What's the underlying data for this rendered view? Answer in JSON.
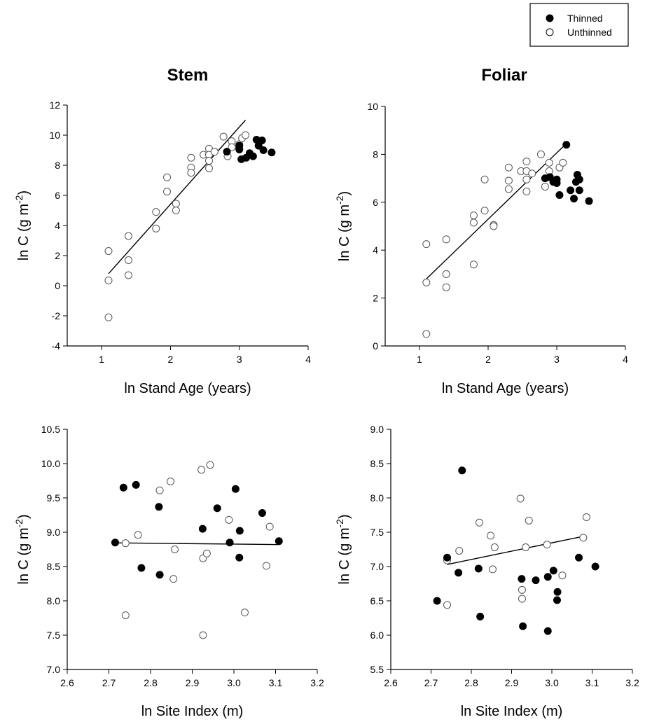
{
  "legend": {
    "entries": [
      {
        "label": "Thinned",
        "marker": "filled-circle",
        "color": "#000000"
      },
      {
        "label": "Unthinned",
        "marker": "open-circle",
        "color": "#ffffff"
      }
    ],
    "placement": "top-right"
  },
  "chart_data": [
    {
      "type": "scatter",
      "panel": "stem-vs-age",
      "title": "Stem",
      "xlabel": "ln Stand Age (years)",
      "ylabel": "ln C (g m-2)",
      "xlim": [
        0.5,
        4
      ],
      "ylim": [
        -4,
        12
      ],
      "xticks": [
        1,
        2,
        3,
        4
      ],
      "yticks": [
        -4,
        -2,
        0,
        2,
        4,
        6,
        8,
        10,
        12
      ],
      "grid": false,
      "series": [
        {
          "name": "Thinned",
          "marker": "filled",
          "points": [
            [
              2.82,
              8.9
            ],
            [
              3.0,
              9.3
            ],
            [
              3.0,
              9.05
            ],
            [
              3.03,
              8.4
            ],
            [
              3.1,
              8.5
            ],
            [
              3.15,
              8.8
            ],
            [
              3.2,
              8.6
            ],
            [
              3.25,
              9.7
            ],
            [
              3.28,
              9.3
            ],
            [
              3.33,
              9.65
            ],
            [
              3.35,
              9.0
            ],
            [
              3.47,
              8.85
            ]
          ]
        },
        {
          "name": "Unthinned",
          "marker": "open",
          "points": [
            [
              1.1,
              2.3
            ],
            [
              1.1,
              0.35
            ],
            [
              1.1,
              -2.1
            ],
            [
              1.39,
              3.3
            ],
            [
              1.39,
              1.7
            ],
            [
              1.39,
              0.7
            ],
            [
              1.79,
              4.9
            ],
            [
              1.79,
              3.8
            ],
            [
              1.95,
              7.2
            ],
            [
              1.95,
              6.25
            ],
            [
              2.08,
              5.45
            ],
            [
              2.08,
              5.0
            ],
            [
              2.3,
              8.5
            ],
            [
              2.3,
              7.85
            ],
            [
              2.3,
              7.5
            ],
            [
              2.48,
              8.7
            ],
            [
              2.56,
              9.1
            ],
            [
              2.56,
              8.7
            ],
            [
              2.56,
              8.3
            ],
            [
              2.56,
              7.8
            ],
            [
              2.64,
              8.9
            ],
            [
              2.77,
              9.9
            ],
            [
              2.83,
              8.6
            ],
            [
              2.89,
              9.6
            ],
            [
              2.89,
              9.2
            ],
            [
              3.0,
              9.4
            ],
            [
              3.0,
              9.1
            ],
            [
              3.04,
              9.8
            ],
            [
              3.09,
              10.0
            ]
          ]
        }
      ],
      "fit_lines": [
        {
          "x": [
            1.1,
            3.09
          ],
          "y": [
            0.8,
            11.0
          ]
        }
      ]
    },
    {
      "type": "scatter",
      "panel": "foliar-vs-age",
      "title": "Foliar",
      "xlabel": "ln Stand Age (years)",
      "ylabel": "ln C (g m-2)",
      "xlim": [
        0.5,
        4
      ],
      "ylim": [
        0,
        10
      ],
      "xticks": [
        1,
        2,
        3,
        4
      ],
      "yticks": [
        0,
        2,
        4,
        6,
        8,
        10
      ],
      "grid": false,
      "series": [
        {
          "name": "Thinned",
          "marker": "filled",
          "points": [
            [
              2.83,
              7.0
            ],
            [
              2.9,
              7.05
            ],
            [
              2.95,
              6.85
            ],
            [
              3.0,
              6.95
            ],
            [
              3.0,
              6.8
            ],
            [
              3.04,
              6.3
            ],
            [
              3.14,
              8.4
            ],
            [
              3.2,
              6.5
            ],
            [
              3.25,
              6.15
            ],
            [
              3.28,
              6.85
            ],
            [
              3.3,
              7.15
            ],
            [
              3.33,
              6.95
            ],
            [
              3.33,
              6.5
            ],
            [
              3.47,
              6.05
            ]
          ]
        },
        {
          "name": "Unthinned",
          "marker": "open",
          "points": [
            [
              1.1,
              4.25
            ],
            [
              1.1,
              2.65
            ],
            [
              1.1,
              0.5
            ],
            [
              1.39,
              4.45
            ],
            [
              1.39,
              3.0
            ],
            [
              1.39,
              2.45
            ],
            [
              1.79,
              5.45
            ],
            [
              1.79,
              5.15
            ],
            [
              1.79,
              3.4
            ],
            [
              1.95,
              6.95
            ],
            [
              1.95,
              5.65
            ],
            [
              2.08,
              5.05
            ],
            [
              2.08,
              5.0
            ],
            [
              2.3,
              7.45
            ],
            [
              2.3,
              6.9
            ],
            [
              2.3,
              6.55
            ],
            [
              2.48,
              7.3
            ],
            [
              2.56,
              7.7
            ],
            [
              2.56,
              7.3
            ],
            [
              2.56,
              6.95
            ],
            [
              2.56,
              6.45
            ],
            [
              2.64,
              7.2
            ],
            [
              2.77,
              8.0
            ],
            [
              2.83,
              6.65
            ],
            [
              2.89,
              7.65
            ],
            [
              2.89,
              7.3
            ],
            [
              3.04,
              7.45
            ],
            [
              3.09,
              7.65
            ]
          ]
        }
      ],
      "fit_lines": [
        {
          "x": [
            1.1,
            3.14
          ],
          "y": [
            2.8,
            8.45
          ]
        }
      ]
    },
    {
      "type": "scatter",
      "panel": "stem-vs-site-index",
      "title": "",
      "xlabel": "ln Site Index (m)",
      "ylabel": "ln C (g m-2)",
      "xlim": [
        2.6,
        3.2
      ],
      "ylim": [
        7.0,
        10.5
      ],
      "xticks": [
        "2.6",
        "2.7",
        "2.8",
        "2.9",
        "3.0",
        "3.1",
        "3.2"
      ],
      "yticks": [
        "7.0",
        "7.5",
        "8.0",
        "8.5",
        "9.0",
        "9.5",
        "10.0",
        "10.5"
      ],
      "grid": false,
      "series": [
        {
          "name": "Thinned",
          "marker": "filled",
          "points": [
            [
              2.715,
              8.85
            ],
            [
              2.735,
              9.65
            ],
            [
              2.765,
              9.69
            ],
            [
              2.778,
              8.48
            ],
            [
              2.82,
              9.37
            ],
            [
              2.822,
              8.38
            ],
            [
              2.925,
              9.05
            ],
            [
              2.96,
              9.35
            ],
            [
              2.99,
              8.85
            ],
            [
              3.004,
              9.63
            ],
            [
              3.014,
              9.02
            ],
            [
              3.013,
              8.63
            ],
            [
              3.068,
              9.28
            ],
            [
              3.108,
              8.87
            ]
          ]
        },
        {
          "name": "Unthinned",
          "marker": "open",
          "points": [
            [
              2.74,
              8.84
            ],
            [
              2.74,
              7.79
            ],
            [
              2.77,
              8.96
            ],
            [
              2.822,
              9.61
            ],
            [
              2.848,
              9.74
            ],
            [
              2.855,
              8.32
            ],
            [
              2.858,
              8.75
            ],
            [
              2.922,
              9.91
            ],
            [
              2.926,
              8.62
            ],
            [
              2.926,
              7.5
            ],
            [
              2.935,
              8.69
            ],
            [
              2.943,
              9.98
            ],
            [
              2.988,
              9.18
            ],
            [
              3.026,
              7.83
            ],
            [
              3.078,
              8.51
            ],
            [
              3.086,
              9.08
            ]
          ]
        }
      ],
      "fit_lines": [
        {
          "x": [
            2.715,
            3.108
          ],
          "y": [
            8.845,
            8.82
          ]
        }
      ]
    },
    {
      "type": "scatter",
      "panel": "foliar-vs-site-index",
      "title": "",
      "xlabel": "ln Site Index (m)",
      "ylabel": "ln C (g m-2)",
      "xlim": [
        2.6,
        3.2
      ],
      "ylim": [
        5.5,
        9.0
      ],
      "xticks": [
        "2.6",
        "2.7",
        "2.8",
        "2.9",
        "3.0",
        "3.1",
        "3.2"
      ],
      "yticks": [
        "5.5",
        "6.0",
        "6.5",
        "7.0",
        "7.5",
        "8.0",
        "8.5",
        "9.0"
      ],
      "grid": false,
      "series": [
        {
          "name": "Thinned",
          "marker": "filled",
          "points": [
            [
              2.715,
              6.5
            ],
            [
              2.74,
              7.13
            ],
            [
              2.768,
              6.91
            ],
            [
              2.777,
              8.4
            ],
            [
              2.818,
              6.97
            ],
            [
              2.822,
              6.27
            ],
            [
              2.925,
              6.82
            ],
            [
              2.928,
              6.13
            ],
            [
              2.96,
              6.8
            ],
            [
              2.99,
              6.85
            ],
            [
              2.99,
              6.06
            ],
            [
              3.004,
              6.94
            ],
            [
              3.014,
              6.63
            ],
            [
              3.013,
              6.51
            ],
            [
              3.067,
              7.13
            ],
            [
              3.108,
              7.0
            ]
          ]
        },
        {
          "name": "Unthinned",
          "marker": "open",
          "points": [
            [
              2.74,
              6.44
            ],
            [
              2.74,
              7.09
            ],
            [
              2.77,
              7.23
            ],
            [
              2.82,
              7.64
            ],
            [
              2.848,
              7.45
            ],
            [
              2.853,
              6.96
            ],
            [
              2.858,
              7.28
            ],
            [
              2.922,
              7.99
            ],
            [
              2.926,
              6.66
            ],
            [
              2.926,
              6.53
            ],
            [
              2.935,
              7.28
            ],
            [
              2.943,
              7.67
            ],
            [
              2.988,
              7.32
            ],
            [
              3.026,
              6.87
            ],
            [
              3.078,
              7.42
            ],
            [
              3.086,
              7.72
            ]
          ]
        }
      ],
      "fit_lines": [
        {
          "x": [
            2.74,
            3.086
          ],
          "y": [
            7.03,
            7.45
          ]
        }
      ]
    }
  ]
}
